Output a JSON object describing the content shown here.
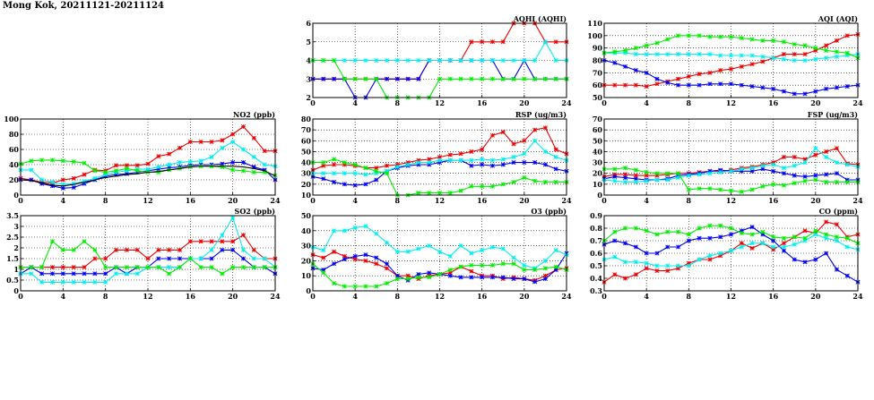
{
  "page_title": "Mong Kok, 20211121-20211124",
  "colors": {
    "red": "#ee0000",
    "blue": "#0000ee",
    "cyan": "#00eeee",
    "green": "#00ee00",
    "black": "#000000"
  },
  "chart_data": [
    {
      "id": "aqhi",
      "type": "line",
      "title": "AQHI (AQHI)",
      "xlim": [
        0,
        24
      ],
      "ylim": [
        2,
        6
      ],
      "xticks": [
        0,
        4,
        8,
        12,
        16,
        20,
        24
      ],
      "yticks": [
        2,
        3,
        4,
        5,
        6
      ],
      "grid": true,
      "series": [
        {
          "color": "red",
          "values": [
            3,
            3,
            3,
            3,
            3,
            3,
            3,
            3,
            3,
            3,
            3,
            4,
            4,
            4,
            4,
            5,
            5,
            5,
            5,
            6,
            6,
            6,
            5,
            5,
            5
          ]
        },
        {
          "color": "blue",
          "values": [
            3,
            3,
            3,
            3,
            2,
            2,
            3,
            3,
            3,
            3,
            3,
            4,
            4,
            4,
            4,
            4,
            4,
            4,
            3,
            3,
            4,
            3,
            3,
            3,
            3
          ]
        },
        {
          "color": "cyan",
          "values": [
            4,
            4,
            4,
            4,
            4,
            4,
            4,
            4,
            4,
            4,
            4,
            4,
            4,
            4,
            4,
            4,
            4,
            4,
            4,
            4,
            4,
            4,
            5,
            4,
            4
          ]
        },
        {
          "color": "green",
          "values": [
            4,
            4,
            4,
            3,
            3,
            3,
            3,
            2,
            2,
            2,
            2,
            2,
            3,
            3,
            3,
            3,
            3,
            3,
            3,
            3,
            3,
            3,
            3,
            3,
            3
          ]
        }
      ]
    },
    {
      "id": "aqi",
      "type": "line",
      "title": "AQI (AQI)",
      "xlim": [
        0,
        24
      ],
      "ylim": [
        50,
        110
      ],
      "xticks": [
        0,
        4,
        8,
        12,
        16,
        20,
        24
      ],
      "yticks": [
        50,
        60,
        70,
        80,
        90,
        100,
        110
      ],
      "grid": true,
      "series": [
        {
          "color": "red",
          "values": [
            60,
            60,
            60,
            60,
            59,
            61,
            63,
            65,
            67,
            69,
            70,
            72,
            73,
            75,
            77,
            79,
            82,
            85,
            85,
            85,
            88,
            92,
            96,
            100,
            101
          ]
        },
        {
          "color": "blue",
          "values": [
            80,
            78,
            75,
            72,
            70,
            65,
            62,
            60,
            60,
            60,
            61,
            61,
            61,
            60,
            59,
            58,
            57,
            55,
            53,
            53,
            55,
            57,
            58,
            59,
            60
          ]
        },
        {
          "color": "cyan",
          "values": [
            86,
            86,
            86,
            85,
            85,
            85,
            85,
            85,
            85,
            85,
            85,
            84,
            84,
            84,
            84,
            83,
            82,
            81,
            80,
            80,
            81,
            82,
            83,
            84,
            85
          ]
        },
        {
          "color": "green",
          "values": [
            86,
            87,
            88,
            90,
            92,
            94,
            97,
            100,
            100,
            100,
            99,
            99,
            99,
            98,
            97,
            96,
            96,
            95,
            93,
            92,
            90,
            88,
            87,
            86,
            82
          ]
        }
      ]
    },
    {
      "id": "no2",
      "type": "line",
      "title": "NO2 (ppb)",
      "xlim": [
        0,
        24
      ],
      "ylim": [
        0,
        100
      ],
      "xticks": [
        0,
        4,
        8,
        12,
        16,
        20,
        24
      ],
      "yticks": [
        0,
        20,
        40,
        60,
        80,
        100
      ],
      "grid": true,
      "series": [
        {
          "color": "red",
          "values": [
            22,
            20,
            17,
            16,
            20,
            22,
            27,
            33,
            32,
            39,
            39,
            39,
            41,
            51,
            54,
            62,
            70,
            70,
            70,
            72,
            80,
            90,
            75,
            58,
            58
          ]
        },
        {
          "color": "blue",
          "values": [
            20,
            20,
            15,
            12,
            9,
            10,
            15,
            20,
            25,
            27,
            28,
            30,
            32,
            34,
            36,
            37,
            39,
            40,
            40,
            41,
            43,
            43,
            37,
            33,
            20
          ]
        },
        {
          "color": "cyan",
          "values": [
            33,
            33,
            20,
            17,
            14,
            15,
            18,
            22,
            27,
            30,
            32,
            34,
            34,
            37,
            40,
            43,
            44,
            45,
            50,
            62,
            70,
            60,
            50,
            40,
            38
          ]
        },
        {
          "color": "green",
          "values": [
            41,
            45,
            46,
            46,
            45,
            44,
            42,
            32,
            30,
            32,
            35,
            32,
            30,
            30,
            33,
            35,
            37,
            38,
            38,
            37,
            33,
            32,
            30,
            30,
            26
          ]
        },
        {
          "color": "black",
          "values": [
            20,
            19,
            16,
            13,
            12,
            14,
            17,
            20,
            23,
            25,
            27,
            28,
            30,
            31,
            33,
            35,
            37,
            38,
            38,
            38,
            38,
            37,
            35,
            32,
            25
          ]
        }
      ]
    },
    {
      "id": "rsp",
      "type": "line",
      "title": "RSP (ug/m3)",
      "xlim": [
        0,
        24
      ],
      "ylim": [
        10,
        80
      ],
      "xticks": [
        0,
        4,
        8,
        12,
        16,
        20,
        24
      ],
      "yticks": [
        10,
        20,
        30,
        40,
        50,
        60,
        70,
        80
      ],
      "grid": true,
      "series": [
        {
          "color": "red",
          "values": [
            33,
            37,
            38,
            38,
            37,
            35,
            35,
            37,
            38,
            40,
            42,
            43,
            45,
            47,
            48,
            50,
            52,
            65,
            68,
            57,
            60,
            70,
            72,
            52,
            48
          ]
        },
        {
          "color": "blue",
          "values": [
            27,
            25,
            22,
            20,
            19,
            20,
            24,
            32,
            35,
            37,
            38,
            38,
            40,
            42,
            42,
            37,
            38,
            37,
            38,
            40,
            40,
            40,
            38,
            34,
            32
          ]
        },
        {
          "color": "cyan",
          "values": [
            30,
            30,
            30,
            30,
            30,
            29,
            30,
            32,
            36,
            38,
            40,
            40,
            42,
            42,
            42,
            42,
            43,
            42,
            43,
            45,
            48,
            60,
            50,
            45,
            42
          ]
        },
        {
          "color": "green",
          "values": [
            40,
            40,
            43,
            40,
            38,
            35,
            32,
            30,
            10,
            10,
            12,
            12,
            12,
            12,
            14,
            18,
            18,
            18,
            20,
            22,
            26,
            23,
            22,
            22,
            22
          ]
        }
      ]
    },
    {
      "id": "fsp",
      "type": "line",
      "title": "FSP (ug/m3)",
      "xlim": [
        0,
        24
      ],
      "ylim": [
        0,
        70
      ],
      "xticks": [
        0,
        4,
        8,
        12,
        16,
        20,
        24
      ],
      "yticks": [
        0,
        10,
        20,
        30,
        40,
        50,
        60,
        70
      ],
      "grid": true,
      "series": [
        {
          "color": "red",
          "values": [
            17,
            19,
            19,
            18,
            18,
            18,
            19,
            20,
            20,
            21,
            22,
            22,
            23,
            25,
            26,
            28,
            30,
            35,
            35,
            33,
            37,
            40,
            43,
            29,
            28
          ]
        },
        {
          "color": "blue",
          "values": [
            15,
            17,
            16,
            15,
            14,
            14,
            15,
            18,
            19,
            20,
            22,
            23,
            22,
            22,
            22,
            24,
            22,
            20,
            18,
            17,
            18,
            19,
            20,
            14,
            14
          ]
        },
        {
          "color": "cyan",
          "values": [
            14,
            13,
            12,
            12,
            13,
            14,
            14,
            16,
            18,
            19,
            20,
            21,
            22,
            24,
            25,
            27,
            28,
            25,
            27,
            30,
            43,
            35,
            30,
            28,
            26
          ]
        },
        {
          "color": "green",
          "values": [
            24,
            24,
            25,
            23,
            21,
            20,
            20,
            20,
            5,
            6,
            6,
            5,
            4,
            3,
            5,
            8,
            10,
            9,
            11,
            13,
            14,
            12,
            12,
            12,
            12
          ]
        }
      ]
    },
    {
      "id": "so2",
      "type": "line",
      "title": "SO2 (ppb)",
      "xlim": [
        0,
        24
      ],
      "ylim": [
        0,
        3.5
      ],
      "xticks": [
        0,
        4,
        8,
        12,
        16,
        20,
        24
      ],
      "yticks": [
        0,
        0.5,
        1,
        1.5,
        2,
        2.5,
        3,
        3.5
      ],
      "grid": true,
      "series": [
        {
          "color": "red",
          "values": [
            1.1,
            1.1,
            1.1,
            1.1,
            1.1,
            1.1,
            1.1,
            1.5,
            1.5,
            1.9,
            1.9,
            1.9,
            1.5,
            1.9,
            1.9,
            1.9,
            2.3,
            2.3,
            2.3,
            2.3,
            2.3,
            2.6,
            1.9,
            1.5,
            1.5
          ]
        },
        {
          "color": "blue",
          "values": [
            0.8,
            1.1,
            0.8,
            0.8,
            0.8,
            0.8,
            0.8,
            0.8,
            0.8,
            1.1,
            0.8,
            1.1,
            1.1,
            1.5,
            1.5,
            1.5,
            1.5,
            1.5,
            1.5,
            1.9,
            1.9,
            1.5,
            1.1,
            1.1,
            0.8
          ]
        },
        {
          "color": "cyan",
          "values": [
            0.8,
            0.8,
            0.4,
            0.4,
            0.4,
            0.4,
            0.4,
            0.4,
            0.4,
            0.8,
            0.8,
            0.8,
            1.1,
            1.1,
            1.1,
            1.1,
            1.5,
            1.5,
            1.9,
            2.6,
            3.4,
            1.9,
            1.5,
            1.5,
            1.1
          ]
        },
        {
          "color": "green",
          "values": [
            1.1,
            1.1,
            1.1,
            2.3,
            1.9,
            1.9,
            2.3,
            1.9,
            1.1,
            1.1,
            1.1,
            1.1,
            1.1,
            1.1,
            0.8,
            1.1,
            1.5,
            1.1,
            1.1,
            0.8,
            1.1,
            1.1,
            1.1,
            1.1,
            1.1
          ]
        }
      ]
    },
    {
      "id": "o3",
      "type": "line",
      "title": "O3 (ppb)",
      "xlim": [
        0,
        24
      ],
      "ylim": [
        0,
        50
      ],
      "xticks": [
        0,
        4,
        8,
        12,
        16,
        20,
        24
      ],
      "yticks": [
        0,
        10,
        20,
        30,
        40,
        50
      ],
      "grid": true,
      "series": [
        {
          "color": "red",
          "values": [
            24,
            22,
            26,
            23,
            21,
            20,
            18,
            15,
            10,
            10,
            8,
            10,
            11,
            12,
            16,
            13,
            10,
            10,
            8,
            9,
            8,
            7,
            10,
            14,
            15
          ]
        },
        {
          "color": "blue",
          "values": [
            15,
            14,
            18,
            21,
            23,
            24,
            22,
            18,
            10,
            7,
            11,
            12,
            11,
            10,
            9,
            9,
            9,
            9,
            9,
            8,
            8,
            6,
            8,
            14,
            25
          ]
        },
        {
          "color": "cyan",
          "values": [
            29,
            27,
            40,
            40,
            42,
            43,
            38,
            32,
            26,
            26,
            28,
            30,
            26,
            23,
            30,
            25,
            27,
            29,
            28,
            22,
            17,
            15,
            20,
            27,
            24
          ]
        },
        {
          "color": "green",
          "values": [
            18,
            12,
            5,
            3,
            3,
            3,
            3,
            5,
            8,
            8,
            9,
            9,
            11,
            14,
            16,
            17,
            17,
            17,
            18,
            18,
            14,
            14,
            15,
            16,
            14
          ]
        }
      ]
    },
    {
      "id": "co",
      "type": "line",
      "title": "CO (ppm)",
      "xlim": [
        0,
        24
      ],
      "ylim": [
        0.3,
        0.9
      ],
      "xticks": [
        0,
        4,
        8,
        12,
        16,
        20,
        24
      ],
      "yticks": [
        0.3,
        0.4,
        0.5,
        0.6,
        0.7,
        0.8,
        0.9
      ],
      "grid": true,
      "series": [
        {
          "color": "red",
          "values": [
            0.37,
            0.43,
            0.4,
            0.43,
            0.48,
            0.46,
            0.46,
            0.48,
            0.52,
            0.55,
            0.55,
            0.58,
            0.62,
            0.68,
            0.64,
            0.68,
            0.63,
            0.68,
            0.73,
            0.78,
            0.76,
            0.85,
            0.83,
            0.73,
            0.75
          ]
        },
        {
          "color": "blue",
          "values": [
            0.67,
            0.7,
            0.68,
            0.65,
            0.6,
            0.6,
            0.65,
            0.65,
            0.7,
            0.72,
            0.72,
            0.73,
            0.75,
            0.78,
            0.81,
            0.75,
            0.7,
            0.62,
            0.55,
            0.53,
            0.55,
            0.6,
            0.47,
            0.42,
            0.37
          ]
        },
        {
          "color": "cyan",
          "values": [
            0.55,
            0.57,
            0.53,
            0.53,
            0.52,
            0.5,
            0.5,
            0.5,
            0.5,
            0.55,
            0.58,
            0.6,
            0.62,
            0.65,
            0.68,
            0.68,
            0.65,
            0.65,
            0.67,
            0.7,
            0.75,
            0.72,
            0.7,
            0.65,
            0.63
          ]
        },
        {
          "color": "green",
          "values": [
            0.7,
            0.77,
            0.8,
            0.8,
            0.78,
            0.75,
            0.77,
            0.77,
            0.75,
            0.8,
            0.82,
            0.82,
            0.8,
            0.76,
            0.75,
            0.77,
            0.73,
            0.72,
            0.73,
            0.72,
            0.78,
            0.75,
            0.73,
            0.72,
            0.68
          ]
        }
      ]
    }
  ]
}
